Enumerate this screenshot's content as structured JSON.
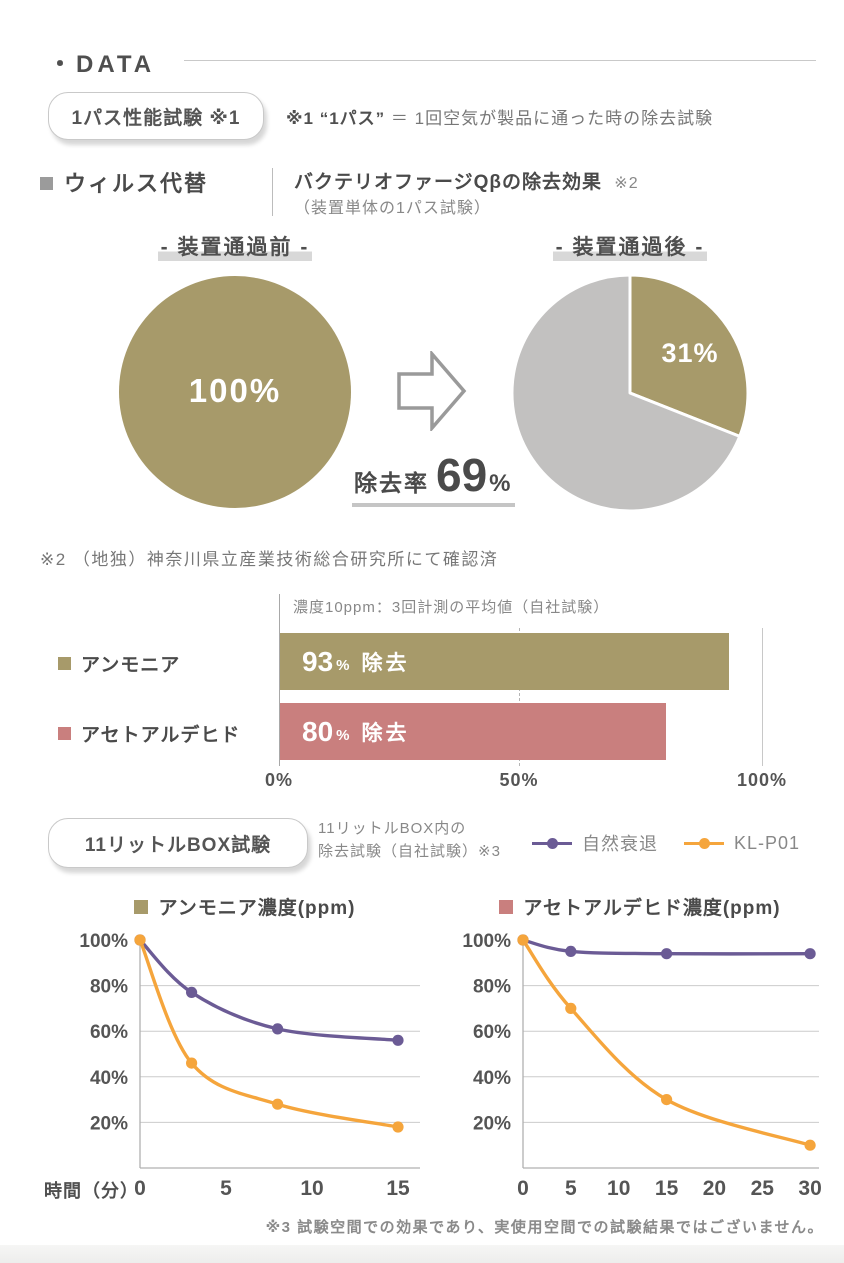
{
  "page": {
    "title": "・DATA",
    "footer_note": "※3 試験空間での効果であり、実使用空間での試験結果ではございません。"
  },
  "colors": {
    "olive": "#a79a6a",
    "gray": "#c2c1c0",
    "pink": "#c97f7e",
    "purple": "#6b5b95",
    "orange": "#f5a53c",
    "dark_text": "#4f4f4f",
    "mid_text": "#777777"
  },
  "one_pass_test": {
    "badge_label": "1パス性能試験 ※1",
    "note_ref": "※1",
    "note_term": "“1パス”",
    "note_equals": "＝",
    "note_text": "1回空気が製品に通った時の除去試験"
  },
  "virus_section": {
    "label": "ウィルス代替",
    "title": "バクテリオファージQβの除去効果",
    "title_ref": "※2",
    "subtitle": "（装置単体の1パス試験）",
    "before_label": "- 装置通過前 -",
    "after_label": "- 装置通過後 -",
    "removal_rate_label": "除去率",
    "removal_rate_value": "69",
    "removal_rate_unit": "%",
    "note": "※2 （地独）神奈川県立産業技術総合研究所にて確認済"
  },
  "box_test": {
    "badge_label": "11リットルBOX試験",
    "description_line1": "11リットルBOX内の",
    "description_line2": "除去試験（自社試験）※3",
    "xaxis_label": "時間（分）"
  },
  "chart_data": [
    {
      "type": "pie",
      "name": "before-pass",
      "title": "装置通過前",
      "slices": [
        {
          "label": "100%",
          "value": 100,
          "color": "olive"
        }
      ]
    },
    {
      "type": "pie",
      "name": "after-pass",
      "title": "装置通過後",
      "slices": [
        {
          "label": "31%",
          "value": 31,
          "color": "olive"
        },
        {
          "label": "",
          "value": 69,
          "color": "gray"
        }
      ],
      "annotation": "除去率 69%"
    },
    {
      "type": "bar",
      "name": "one-pass-removal",
      "orientation": "horizontal",
      "header": "濃度10ppm：3回計測の平均値（自社試験）",
      "categories": [
        "アンモニア",
        "アセトアルデヒド"
      ],
      "values": [
        93,
        80
      ],
      "value_labels": [
        "93",
        "80"
      ],
      "value_unit": "%",
      "value_suffix": "除去",
      "bar_colors": [
        "olive",
        "pink"
      ],
      "xlim": [
        0,
        100
      ],
      "xticks": [
        {
          "value": 0,
          "label": "0%"
        },
        {
          "value": 50,
          "label": "50%"
        },
        {
          "value": 100,
          "label": "100%"
        }
      ]
    },
    {
      "type": "line",
      "name": "ammonia-box-test",
      "title": "アンモニア濃度(ppm)",
      "title_bullet_color": "olive",
      "xlabel": "時間（分）",
      "xlim": [
        0,
        16.3
      ],
      "xticks": [
        0,
        5,
        10,
        15
      ],
      "ylim": [
        0,
        100
      ],
      "yticks": [
        {
          "value": 100,
          "label": "100%"
        },
        {
          "value": 80,
          "label": "80%"
        },
        {
          "value": 60,
          "label": "60%"
        },
        {
          "value": 40,
          "label": "40%"
        },
        {
          "value": 20,
          "label": "20%"
        }
      ],
      "grid": true,
      "series": [
        {
          "name": "自然衰退",
          "color": "purple",
          "points": [
            [
              0,
              100
            ],
            [
              3,
              77
            ],
            [
              8,
              61
            ],
            [
              15,
              56
            ]
          ]
        },
        {
          "name": "KL-P01",
          "color": "orange",
          "points": [
            [
              0,
              100
            ],
            [
              3,
              46
            ],
            [
              8,
              28
            ],
            [
              15,
              18
            ]
          ]
        }
      ]
    },
    {
      "type": "line",
      "name": "acetaldehyde-box-test",
      "title": "アセトアルデヒド濃度(ppm)",
      "title_bullet_color": "pink",
      "xlim": [
        0,
        30.9
      ],
      "xticks": [
        0,
        5,
        10,
        15,
        20,
        25,
        30
      ],
      "ylim": [
        0,
        100
      ],
      "yticks": [
        {
          "value": 100,
          "label": "100%"
        },
        {
          "value": 80,
          "label": "80%"
        },
        {
          "value": 60,
          "label": "60%"
        },
        {
          "value": 40,
          "label": "40%"
        },
        {
          "value": 20,
          "label": "20%"
        }
      ],
      "grid": true,
      "series": [
        {
          "name": "自然衰退",
          "color": "purple",
          "points": [
            [
              0,
              100
            ],
            [
              5,
              95
            ],
            [
              15,
              94
            ],
            [
              30,
              94
            ]
          ]
        },
        {
          "name": "KL-P01",
          "color": "orange",
          "points": [
            [
              0,
              100
            ],
            [
              5,
              70
            ],
            [
              15,
              30
            ],
            [
              30,
              10
            ]
          ]
        }
      ]
    }
  ]
}
